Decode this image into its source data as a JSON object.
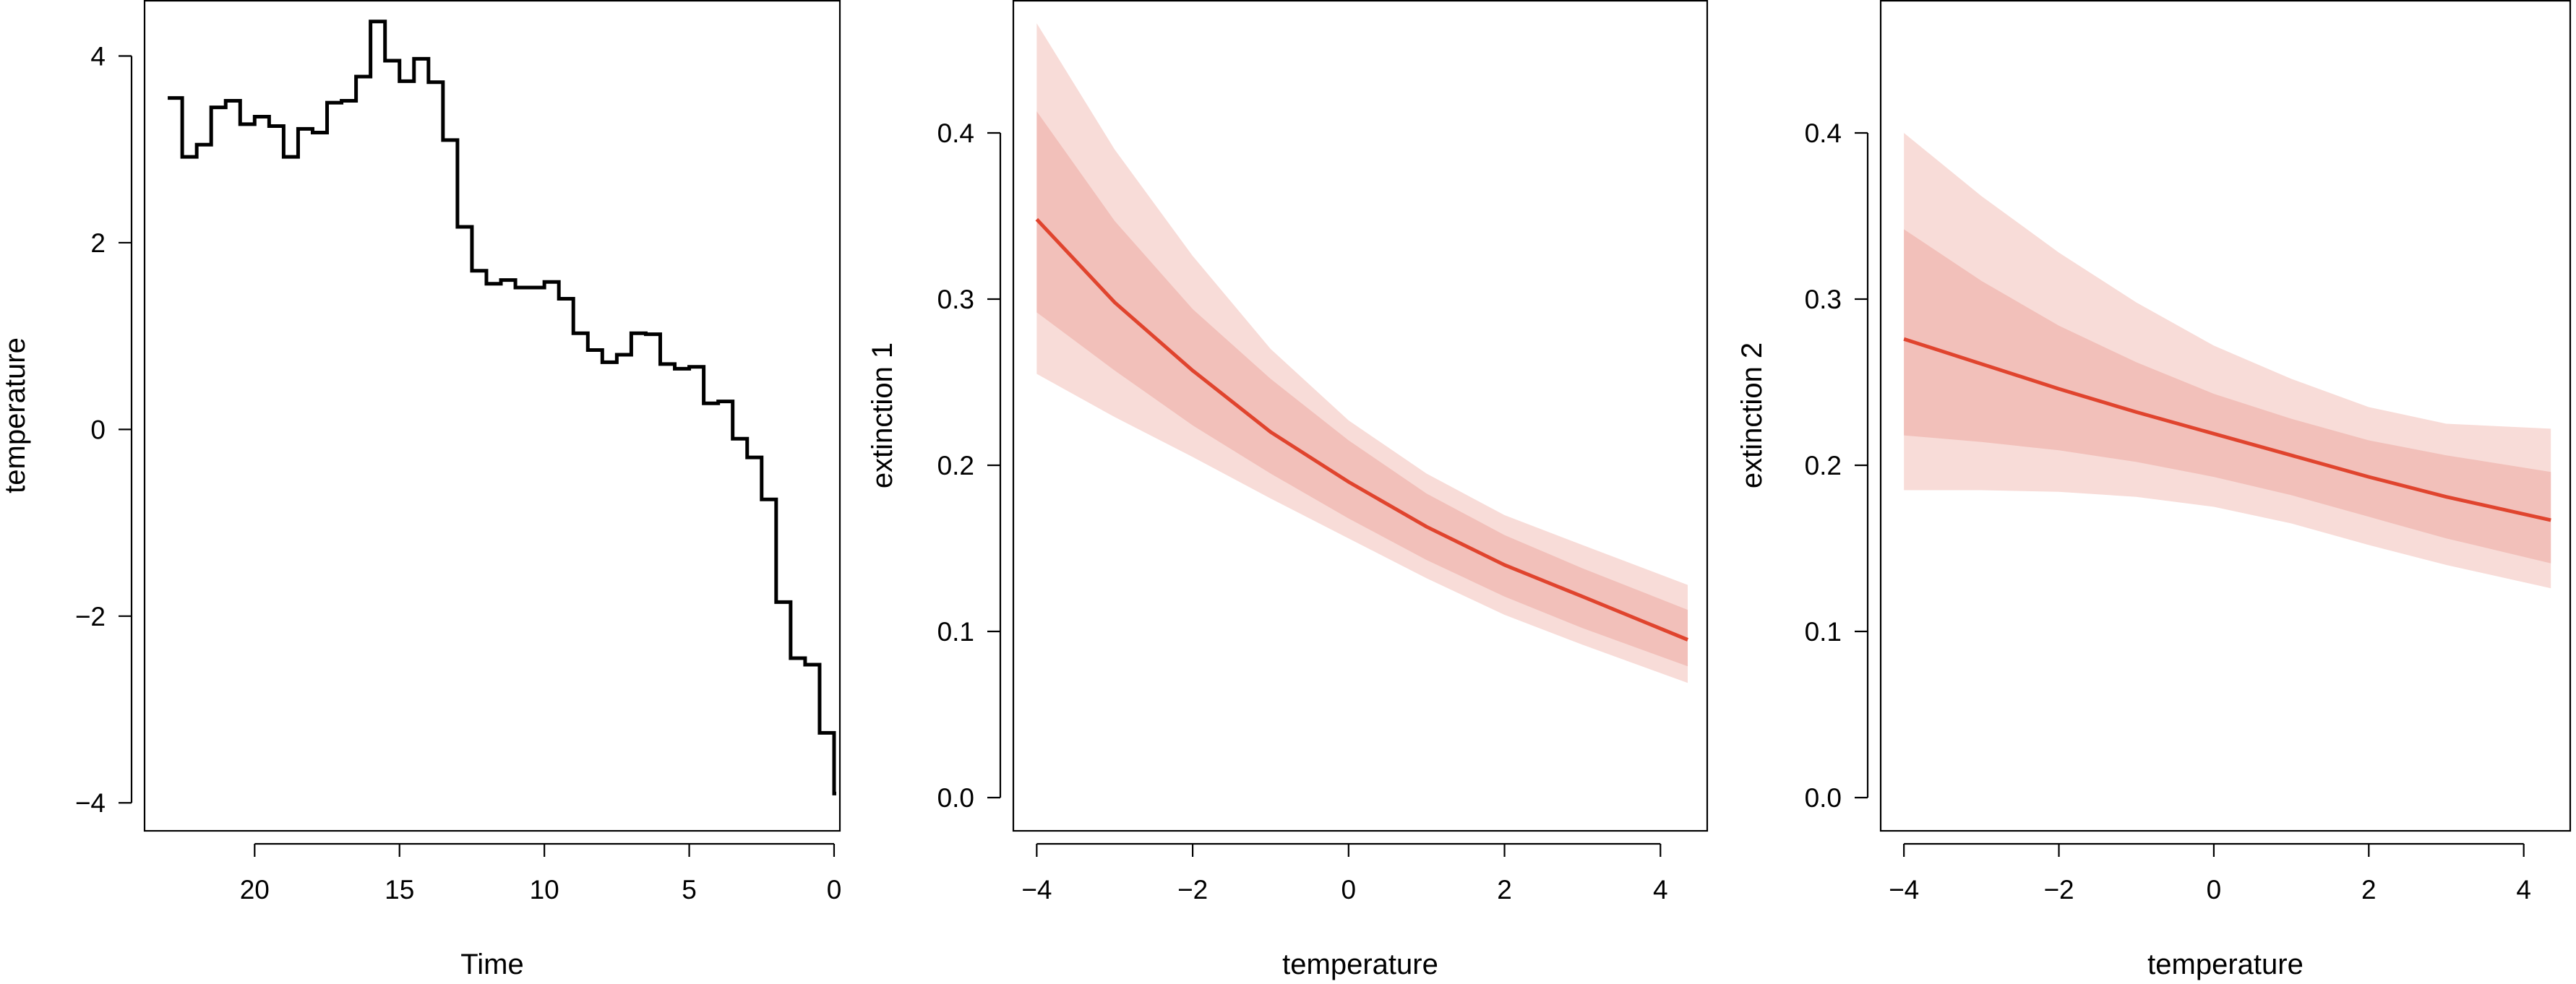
{
  "colors": {
    "ink": "#000000",
    "fit_line": "#e0442e",
    "band_outer": "#f8dcd8",
    "band_inner": "#f2c0ba",
    "background": "#ffffff"
  },
  "chart_data": [
    {
      "type": "line",
      "style": "step",
      "xlabel": "Time",
      "ylabel": "temperature",
      "x_reversed": true,
      "xlim": [
        23.8,
        -0.2
      ],
      "ylim": [
        -4.3,
        4.6
      ],
      "xticks": [
        20,
        15,
        10,
        5,
        0
      ],
      "yticks": [
        4,
        2,
        0,
        -2,
        -4
      ],
      "grid": false,
      "legend": "none",
      "series": [
        {
          "x": [
            23,
            22.5,
            22,
            21.5,
            21,
            20.5,
            20,
            19.5,
            19,
            18.5,
            18,
            17.5,
            17,
            16.5,
            16,
            15.5,
            15,
            14.5,
            14,
            13.5,
            13,
            12.5,
            12,
            11.5,
            11,
            10.5,
            10,
            9.5,
            9,
            8.5,
            8,
            7.5,
            7,
            6.5,
            6,
            5.5,
            5,
            4.5,
            4,
            3.5,
            3,
            2.5,
            2,
            1.5,
            1,
            0.5,
            0
          ],
          "y": [
            3.55,
            2.92,
            3.05,
            3.45,
            3.52,
            3.27,
            3.35,
            3.25,
            2.92,
            3.22,
            3.18,
            3.5,
            3.52,
            3.78,
            4.37,
            3.95,
            3.73,
            3.97,
            3.72,
            3.1,
            2.17,
            1.7,
            1.56,
            1.6,
            1.52,
            1.52,
            1.58,
            1.4,
            1.03,
            0.85,
            0.72,
            0.8,
            1.03,
            1.02,
            0.7,
            0.65,
            0.67,
            0.28,
            0.3,
            -0.1,
            -0.3,
            -0.75,
            -1.85,
            -2.45,
            -2.52,
            -3.25,
            -3.9
          ]
        }
      ]
    },
    {
      "type": "line",
      "xlabel": "temperature",
      "ylabel": "extinction 1",
      "xlim": [
        -4.3,
        4.6
      ],
      "ylim": [
        -0.02,
        0.48
      ],
      "xticks": [
        -4,
        -2,
        0,
        2,
        4
      ],
      "yticks": [
        0.0,
        0.1,
        0.2,
        0.3,
        0.4
      ],
      "ytick_labels": [
        "0.0",
        "0.1",
        "0.2",
        "0.3",
        "0.4"
      ],
      "grid": false,
      "legend": "none",
      "series": [
        {
          "x": [
            -4,
            -3,
            -2,
            -1,
            0,
            1,
            2,
            3,
            4.35
          ],
          "y": [
            0.348,
            0.298,
            0.257,
            0.22,
            0.19,
            0.163,
            0.14,
            0.121,
            0.095
          ],
          "band_inner_lower": [
            0.292,
            0.257,
            0.224,
            0.195,
            0.168,
            0.143,
            0.121,
            0.102,
            0.079
          ],
          "band_inner_upper": [
            0.413,
            0.347,
            0.294,
            0.252,
            0.215,
            0.183,
            0.158,
            0.138,
            0.113
          ],
          "band_outer_lower": [
            0.255,
            0.229,
            0.205,
            0.18,
            0.156,
            0.132,
            0.11,
            0.092,
            0.069
          ],
          "band_outer_upper": [
            0.466,
            0.39,
            0.326,
            0.27,
            0.227,
            0.195,
            0.17,
            0.152,
            0.128
          ]
        }
      ]
    },
    {
      "type": "line",
      "xlabel": "temperature",
      "ylabel": "extinction 2",
      "xlim": [
        -4.3,
        4.6
      ],
      "ylim": [
        -0.02,
        0.48
      ],
      "xticks": [
        -4,
        -2,
        0,
        2,
        4
      ],
      "yticks": [
        0.0,
        0.1,
        0.2,
        0.3,
        0.4
      ],
      "ytick_labels": [
        "0.0",
        "0.1",
        "0.2",
        "0.3",
        "0.4"
      ],
      "grid": false,
      "legend": "none",
      "series": [
        {
          "x": [
            -4,
            -3,
            -2,
            -1,
            0,
            1,
            2,
            3,
            4.35
          ],
          "y": [
            0.276,
            0.261,
            0.246,
            0.232,
            0.219,
            0.206,
            0.193,
            0.181,
            0.167
          ],
          "band_inner_lower": [
            0.218,
            0.214,
            0.209,
            0.202,
            0.193,
            0.182,
            0.169,
            0.156,
            0.141
          ],
          "band_inner_upper": [
            0.342,
            0.311,
            0.284,
            0.262,
            0.243,
            0.228,
            0.215,
            0.206,
            0.196
          ],
          "band_outer_lower": [
            0.185,
            0.185,
            0.184,
            0.181,
            0.175,
            0.165,
            0.152,
            0.14,
            0.126
          ],
          "band_outer_upper": [
            0.4,
            0.362,
            0.328,
            0.298,
            0.272,
            0.252,
            0.235,
            0.225,
            0.222
          ]
        }
      ]
    }
  ]
}
